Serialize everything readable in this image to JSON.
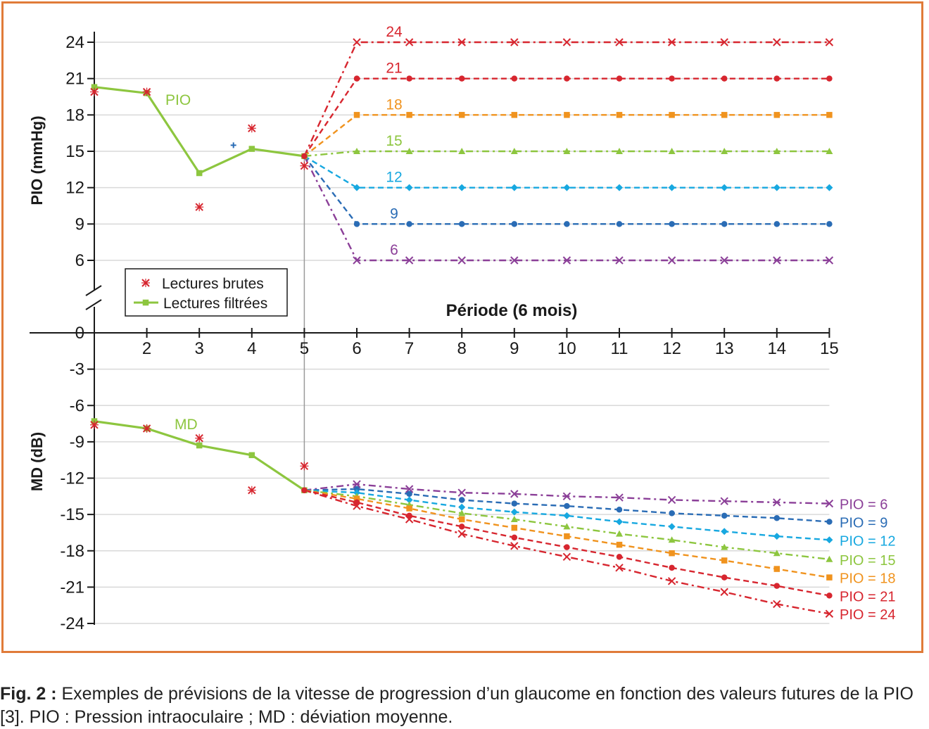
{
  "caption": {
    "label": "Fig. 2 :",
    "text": " Exemples de prévisions de la vitesse de progression d’un glaucome en fonction des valeurs futures de la PIO [3]. PIO : Pression intraoculaire ; MD : déviation moyenne."
  },
  "chart_data": {
    "type": "line",
    "xlabel": "Période (6 mois)",
    "x_ticks": [
      2,
      3,
      4,
      5,
      6,
      7,
      8,
      9,
      10,
      11,
      12,
      13,
      14,
      15
    ],
    "xlim": [
      1,
      15
    ],
    "top_panel": {
      "ylabel": "PIO (mmHg)",
      "y_ticks": [
        6,
        9,
        12,
        15,
        18,
        21,
        24
      ],
      "series_label": "PIO",
      "raw_readings": [
        [
          1,
          19.9
        ],
        [
          2,
          19.9
        ],
        [
          3,
          10.4
        ],
        [
          4,
          16.9
        ],
        [
          5,
          13.8
        ]
      ],
      "filtered_readings": [
        [
          1,
          20.3
        ],
        [
          2,
          19.8
        ],
        [
          3,
          13.2
        ],
        [
          4,
          15.2
        ],
        [
          5,
          14.6
        ]
      ],
      "extra_marker": [
        3.65,
        15.5
      ],
      "projections": [
        {
          "label": "24",
          "value": 24,
          "color": "#D7262F",
          "marker": "x",
          "dash": "dashdot"
        },
        {
          "label": "21",
          "value": 21,
          "color": "#D7262F",
          "marker": "dot",
          "dash": "dash"
        },
        {
          "label": "18",
          "value": 18,
          "color": "#F0931E",
          "marker": "square",
          "dash": "dash"
        },
        {
          "label": "15",
          "value": 15,
          "color": "#8DC63F",
          "marker": "triangle",
          "dash": "dashdot"
        },
        {
          "label": "12",
          "value": 12,
          "color": "#17A8E0",
          "marker": "diamond",
          "dash": "dash"
        },
        {
          "label": "9",
          "value": 9,
          "color": "#2A6CB5",
          "marker": "dot",
          "dash": "dash"
        },
        {
          "label": "6",
          "value": 6,
          "color": "#8B3F98",
          "marker": "x",
          "dash": "dashdot"
        }
      ]
    },
    "bottom_panel": {
      "ylabel": "MD (dB)",
      "y_ticks": [
        0,
        -3,
        -6,
        -9,
        -12,
        -15,
        -18,
        -21,
        -24
      ],
      "series_label": "MD",
      "raw_readings": [
        [
          1,
          -7.6
        ],
        [
          2,
          -7.9
        ],
        [
          3,
          -8.7
        ],
        [
          4,
          -13.0
        ],
        [
          5,
          -11.0
        ]
      ],
      "filtered_readings": [
        [
          1,
          -7.3
        ],
        [
          2,
          -7.9
        ],
        [
          3,
          -9.3
        ],
        [
          4,
          -10.1
        ],
        [
          5,
          -13.0
        ]
      ],
      "projections": [
        {
          "label": "PIO = 6",
          "color": "#8B3F98",
          "marker": "x",
          "dash": "dashdot",
          "x": [
            5,
            6,
            7,
            8,
            9,
            10,
            11,
            12,
            13,
            14,
            15
          ],
          "y": [
            -13.0,
            -12.5,
            -12.9,
            -13.2,
            -13.3,
            -13.5,
            -13.6,
            -13.8,
            -13.9,
            -14.0,
            -14.1
          ]
        },
        {
          "label": "PIO = 9",
          "color": "#2A6CB5",
          "marker": "dot",
          "dash": "dash",
          "x": [
            5,
            6,
            7,
            8,
            9,
            10,
            11,
            12,
            13,
            14,
            15
          ],
          "y": [
            -13.0,
            -12.9,
            -13.3,
            -13.8,
            -14.1,
            -14.3,
            -14.6,
            -14.9,
            -15.1,
            -15.3,
            -15.6
          ]
        },
        {
          "label": "PIO = 12",
          "color": "#17A8E0",
          "marker": "diamond",
          "dash": "dash",
          "x": [
            5,
            6,
            7,
            8,
            9,
            10,
            11,
            12,
            13,
            14,
            15
          ],
          "y": [
            -13.0,
            -13.2,
            -13.8,
            -14.4,
            -14.8,
            -15.1,
            -15.6,
            -16.0,
            -16.4,
            -16.8,
            -17.1
          ]
        },
        {
          "label": "PIO = 15",
          "color": "#8DC63F",
          "marker": "triangle",
          "dash": "dashdot",
          "x": [
            5,
            6,
            7,
            8,
            9,
            10,
            11,
            12,
            13,
            14,
            15
          ],
          "y": [
            -13.0,
            -13.5,
            -14.2,
            -14.9,
            -15.4,
            -16.0,
            -16.6,
            -17.1,
            -17.7,
            -18.2,
            -18.7
          ]
        },
        {
          "label": "PIO = 18",
          "color": "#F0931E",
          "marker": "square",
          "dash": "dash",
          "x": [
            5,
            6,
            7,
            8,
            9,
            10,
            11,
            12,
            13,
            14,
            15
          ],
          "y": [
            -13.0,
            -13.7,
            -14.5,
            -15.4,
            -16.1,
            -16.8,
            -17.5,
            -18.2,
            -18.8,
            -19.5,
            -20.2
          ]
        },
        {
          "label": "PIO = 21",
          "color": "#D7262F",
          "marker": "dot",
          "dash": "dash",
          "x": [
            5,
            6,
            7,
            8,
            9,
            10,
            11,
            12,
            13,
            14,
            15
          ],
          "y": [
            -13.0,
            -14.0,
            -15.1,
            -16.0,
            -16.9,
            -17.7,
            -18.5,
            -19.4,
            -20.2,
            -20.9,
            -21.7
          ]
        },
        {
          "label": "PIO = 24",
          "color": "#D7262F",
          "marker": "x",
          "dash": "dashdot",
          "x": [
            5,
            6,
            7,
            8,
            9,
            10,
            11,
            12,
            13,
            14,
            15
          ],
          "y": [
            -13.0,
            -14.3,
            -15.4,
            -16.6,
            -17.6,
            -18.5,
            -19.4,
            -20.5,
            -21.4,
            -22.4,
            -23.2
          ]
        }
      ]
    },
    "legend": {
      "position": "left",
      "items": [
        {
          "label": "Lectures brutes",
          "color": "#D7262F",
          "marker": "x"
        },
        {
          "label": "Lectures filtrées",
          "color": "#8DC63F",
          "marker": "square"
        }
      ]
    },
    "colors": {
      "filtered": "#8DC63F",
      "raw": "#D7262F",
      "extra": "#2A6CB5",
      "grid": "#D9D9D9",
      "axis": "#1a1a1a"
    }
  }
}
